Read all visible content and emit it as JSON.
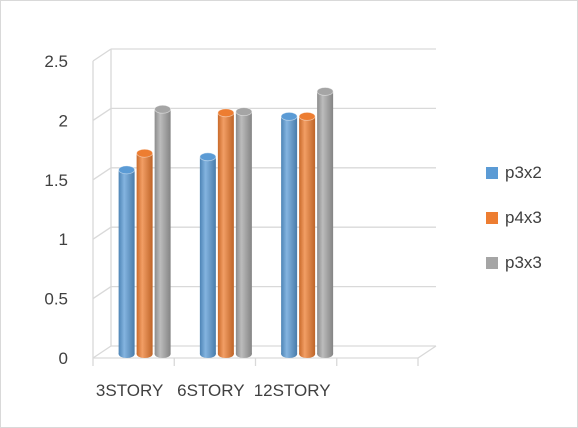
{
  "chart_data": {
    "type": "bar",
    "style": "3d-cylinder",
    "categories": [
      "3STORY",
      "6STORY",
      "12STORY"
    ],
    "series": [
      {
        "name": "p3x2",
        "color": "#5b9bd5",
        "values": [
          1.55,
          1.66,
          2.0
        ]
      },
      {
        "name": "p4x3",
        "color": "#ed7d31",
        "values": [
          1.69,
          2.03,
          2.0
        ]
      },
      {
        "name": "p3x3",
        "color": "#a5a5a5",
        "values": [
          2.06,
          2.04,
          2.21
        ]
      }
    ],
    "ylim": [
      0,
      2.5
    ],
    "yticks": [
      "0",
      "0.5",
      "1",
      "1.5",
      "2",
      "2.5"
    ],
    "grid": true,
    "legend_position": "right"
  }
}
